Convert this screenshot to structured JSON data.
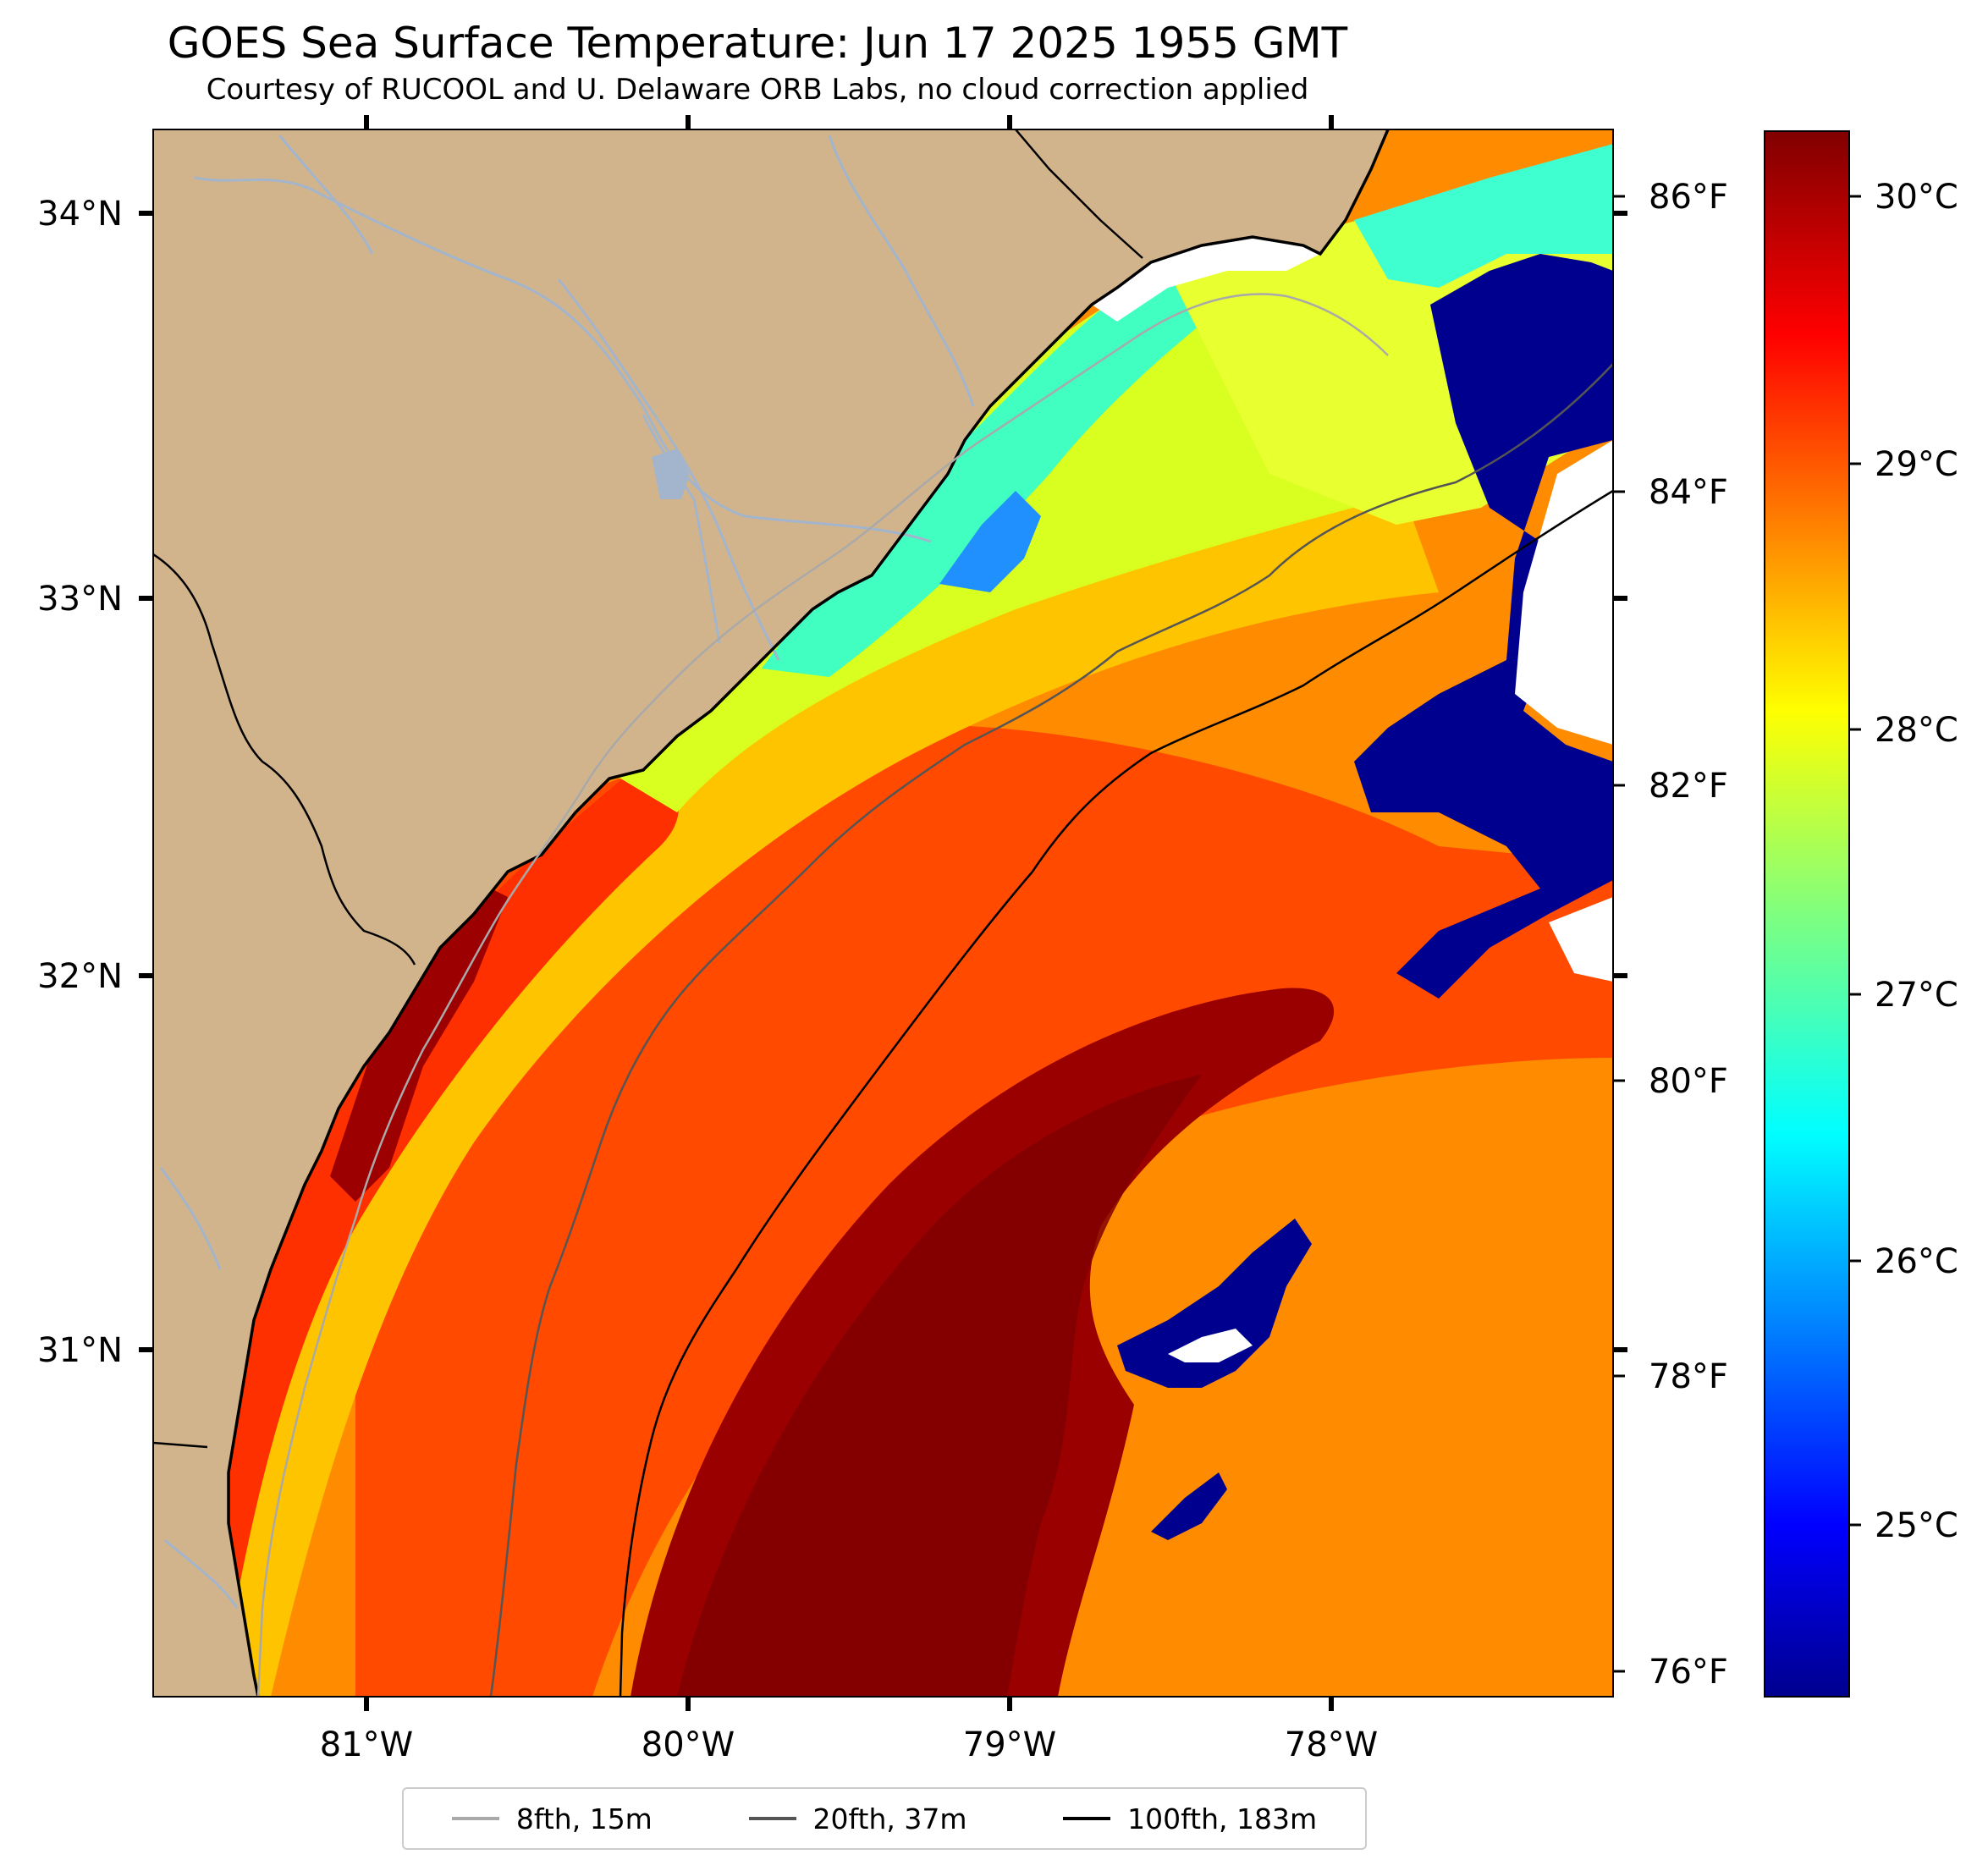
{
  "title": "GOES Sea Surface Temperature: Jun 17 2025 1955 GMT",
  "subtitle": "Courtesy of RUCOOL and U. Delaware ORB Labs, no cloud correction applied",
  "map": {
    "lon_range": [
      -81.67,
      -77.12
    ],
    "lat_range": [
      30.09,
      34.22
    ],
    "lon_ticks": [
      "81°W",
      "80°W",
      "79°W",
      "78°W"
    ],
    "lat_ticks": [
      "34°N",
      "33°N",
      "32°N",
      "31°N"
    ],
    "right_axis_ticks": [
      "86°F",
      "84°F",
      "82°F",
      "80°F",
      "78°F",
      "76°F"
    ],
    "colors": {
      "land": "#d2b48c",
      "rivers": "#a3b5cc",
      "no_data": "#ffffff",
      "coastline": "#000000"
    }
  },
  "colorbar": {
    "colormap": "jet",
    "range_c": [
      24.6,
      30.3
    ],
    "ticks": [
      "30°C",
      "29°C",
      "28°C",
      "27°C",
      "26°C",
      "25°C"
    ]
  },
  "legend": {
    "items": [
      {
        "label": "8fth, 15m",
        "color": "#a9a9a9"
      },
      {
        "label": "20fth, 37m",
        "color": "#555555"
      },
      {
        "label": "100fth, 183m",
        "color": "#000000"
      }
    ]
  }
}
